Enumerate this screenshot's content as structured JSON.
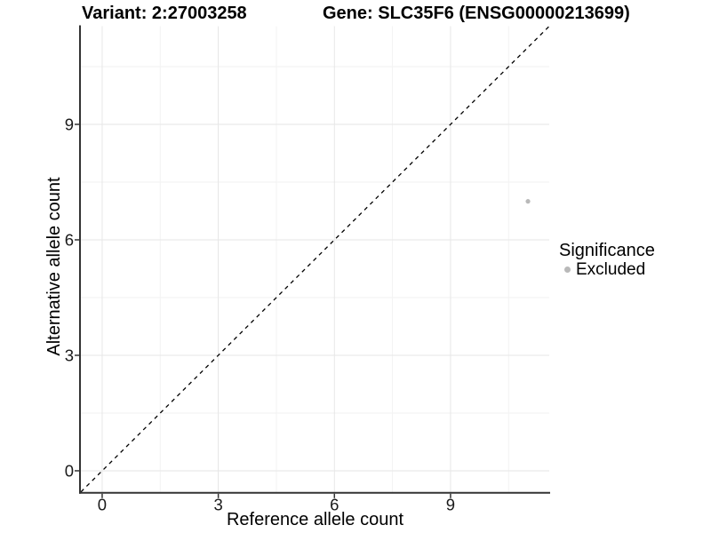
{
  "figure": {
    "title_left": "Variant: 2:27003258",
    "title_right": "Gene: SLC35F6 (ENSG00000213699)",
    "x_axis_label": "Reference allele count",
    "y_axis_label": "Alternative allele count"
  },
  "legend": {
    "title": "Significance",
    "items": [
      {
        "label": "Excluded",
        "color": "#b9b9b9"
      }
    ]
  },
  "chart_data": {
    "type": "scatter",
    "title": "Variant: 2:27003258 | Gene: SLC35F6 (ENSG00000213699)",
    "xlabel": "Reference allele count",
    "ylabel": "Alternative allele count",
    "xlim": [
      -0.55,
      11.55
    ],
    "ylim": [
      -0.55,
      11.55
    ],
    "x_ticks": [
      0,
      3,
      6,
      9
    ],
    "y_ticks": [
      0,
      3,
      6,
      9
    ],
    "x_tick_labels": [
      "0",
      "3",
      "6",
      "9"
    ],
    "y_tick_labels": [
      "0",
      "3",
      "6",
      "9"
    ],
    "grid": true,
    "minor_grid": true,
    "legend_position": "right",
    "series": [
      {
        "name": "Excluded",
        "color": "#b9b9b9",
        "points": [
          {
            "x": 11,
            "y": 7
          }
        ]
      }
    ],
    "reference_line": {
      "kind": "identity",
      "equation": "y = x",
      "style": "dashed",
      "color": "#000000"
    },
    "colors": {
      "background": "#ffffff",
      "major_grid": "#e6e6e6",
      "minor_grid": "#f2f2f2",
      "axis_line": "#333333",
      "tick_mark": "#333333",
      "tick_label": "#1a1a1a",
      "point": "#b9b9b9"
    }
  }
}
